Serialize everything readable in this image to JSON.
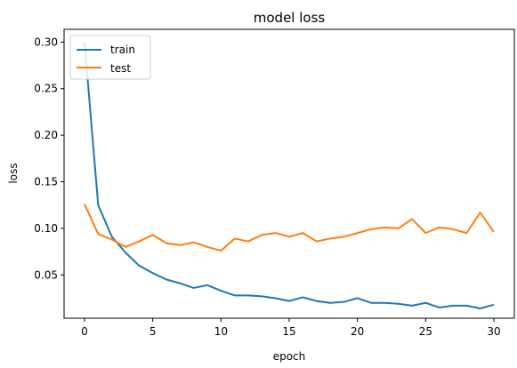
{
  "chart_data": {
    "type": "line",
    "title": "model loss",
    "xlabel": "epoch",
    "ylabel": "loss",
    "xlim": [
      -1.5,
      31.5
    ],
    "ylim": [
      0.0035,
      0.3137
    ],
    "x_ticks": [
      0,
      5,
      10,
      15,
      20,
      25,
      30
    ],
    "y_ticks": [
      0.05,
      0.1,
      0.15,
      0.2,
      0.25,
      0.3
    ],
    "y_tick_labels": [
      "0.05",
      "0.10",
      "0.15",
      "0.20",
      "0.25",
      "0.30"
    ],
    "grid": false,
    "legend_position": "top-left",
    "x": [
      0,
      1,
      2,
      3,
      4,
      5,
      6,
      7,
      8,
      9,
      10,
      11,
      12,
      13,
      14,
      15,
      16,
      17,
      18,
      19,
      20,
      21,
      22,
      23,
      24,
      25,
      26,
      27,
      28,
      29,
      30
    ],
    "series": [
      {
        "name": "train",
        "color": "#1f77b4",
        "values": [
          0.3,
          0.125,
          0.091,
          0.074,
          0.06,
          0.052,
          0.045,
          0.041,
          0.036,
          0.039,
          0.033,
          0.028,
          0.028,
          0.027,
          0.025,
          0.022,
          0.026,
          0.022,
          0.02,
          0.021,
          0.025,
          0.02,
          0.02,
          0.019,
          0.017,
          0.02,
          0.015,
          0.017,
          0.017,
          0.014,
          0.018
        ]
      },
      {
        "name": "test",
        "color": "#ff7f0e",
        "values": [
          0.126,
          0.094,
          0.088,
          0.08,
          0.086,
          0.093,
          0.084,
          0.082,
          0.085,
          0.08,
          0.076,
          0.089,
          0.086,
          0.093,
          0.095,
          0.091,
          0.095,
          0.086,
          0.089,
          0.091,
          0.095,
          0.099,
          0.101,
          0.1,
          0.11,
          0.095,
          0.101,
          0.099,
          0.095,
          0.117,
          0.096
        ]
      }
    ]
  }
}
